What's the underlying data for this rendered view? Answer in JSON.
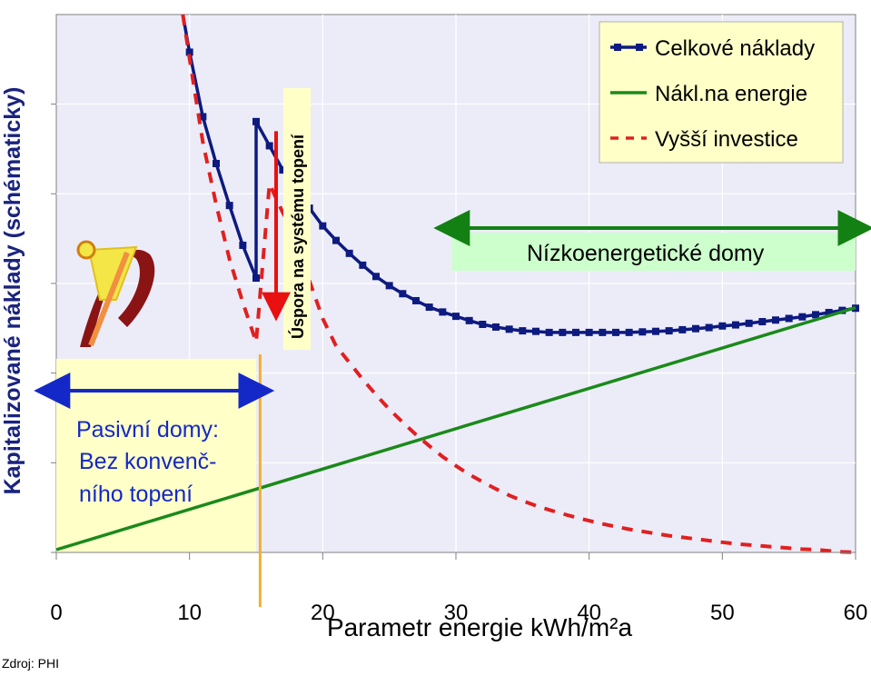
{
  "source_note": "Zdroj: PHI",
  "chart_data": {
    "type": "line",
    "ylabel": "Kapitalizované náklady (schématicky)",
    "xlabel": "Parametr energie kWh/m²a",
    "xlim": [
      0,
      60
    ],
    "ylim": [
      0,
      100
    ],
    "x_ticks": [
      "0",
      "10",
      "20",
      "30",
      "40",
      "50",
      "60"
    ],
    "grid": true,
    "legend_position": "top-right",
    "colors": {
      "total": "#0d1a80",
      "energy": "#1a8a1a",
      "investment": "#e02020",
      "plot_bg": "#ececf8",
      "passive_bg": "#ffffc8",
      "lowenergy_bg": "#ccffcc"
    },
    "series": [
      {
        "name": "Celkové náklady",
        "style": "line-markers",
        "x": [
          9.5,
          10,
          11,
          12,
          13,
          14,
          15,
          15,
          16,
          17,
          18,
          19,
          20,
          21,
          22,
          23,
          24,
          25,
          26,
          27,
          28,
          29,
          30,
          31,
          32,
          33,
          34,
          35,
          36,
          37,
          38,
          39,
          40,
          41,
          42,
          43,
          44,
          45,
          46,
          47,
          48,
          49,
          50,
          51,
          52,
          53,
          54,
          55,
          56,
          57,
          58,
          59,
          60
        ],
        "y": [
          100,
          93,
          81,
          72.3,
          64.5,
          57.1,
          51,
          80.1,
          75.6,
          71.1,
          67.5,
          64,
          60.7,
          58,
          55.6,
          53.4,
          51.3,
          49.6,
          48.1,
          46.8,
          45.6,
          44.7,
          43.9,
          43.1,
          42.4,
          41.9,
          41.5,
          41.2,
          41.1,
          40.9,
          40.9,
          40.9,
          40.9,
          40.9,
          40.9,
          40.9,
          41.0,
          41.1,
          41.2,
          41.4,
          41.6,
          41.8,
          42.1,
          42.3,
          42.6,
          42.9,
          43.2,
          43.5,
          43.8,
          44.2,
          44.6,
          45.0,
          45.4
        ]
      },
      {
        "name": "Nákl.na energie",
        "style": "solid",
        "x": [
          0,
          60
        ],
        "y": [
          0.5,
          45.5
        ]
      },
      {
        "name": "Vyšší investice",
        "style": "dashed",
        "x": [
          9.5,
          10,
          11,
          12,
          13,
          14,
          15,
          16,
          17,
          18,
          19,
          20,
          21,
          22,
          23,
          24,
          25,
          26,
          27,
          28,
          29,
          30,
          31,
          32,
          33,
          34,
          35,
          36,
          37,
          38,
          39,
          40,
          41,
          42,
          43,
          44,
          45,
          46,
          47,
          48,
          49,
          50,
          51,
          52,
          53,
          54,
          55,
          56,
          57,
          58,
          59,
          60
        ],
        "y": [
          100,
          91.8,
          76.3,
          64.7,
          54.5,
          46.5,
          39.1,
          68.5,
          63.2,
          58.5,
          50.5,
          43.5,
          38.4,
          35.3,
          32.2,
          29.3,
          26.6,
          24.2,
          21.9,
          19.8,
          17.8,
          16.1,
          14.5,
          13.1,
          11.8,
          10.6,
          9.6,
          8.7,
          7.9,
          7.2,
          6.5,
          5.9,
          5.3,
          4.8,
          4.3,
          3.9,
          3.5,
          3.1,
          2.8,
          2.5,
          2.2,
          1.9,
          1.6,
          1.4,
          1.2,
          1.0,
          0.8,
          0.6,
          0.5,
          0.3,
          0.1,
          0.0
        ]
      }
    ],
    "annotations": {
      "passive_title": "Pasivní domy:",
      "passive_line2": "Bez konvenč-",
      "passive_line3": "ního  topení",
      "lowenergy_label": "Nízkoenergetické domy",
      "heating_saving_label": "Úspora na systému topení",
      "passive_range": [
        0,
        15
      ],
      "lowenergy_range": [
        30,
        60
      ],
      "saving_arrow_x": 16.5,
      "saving_arrow_y": [
        80,
        45
      ]
    }
  }
}
